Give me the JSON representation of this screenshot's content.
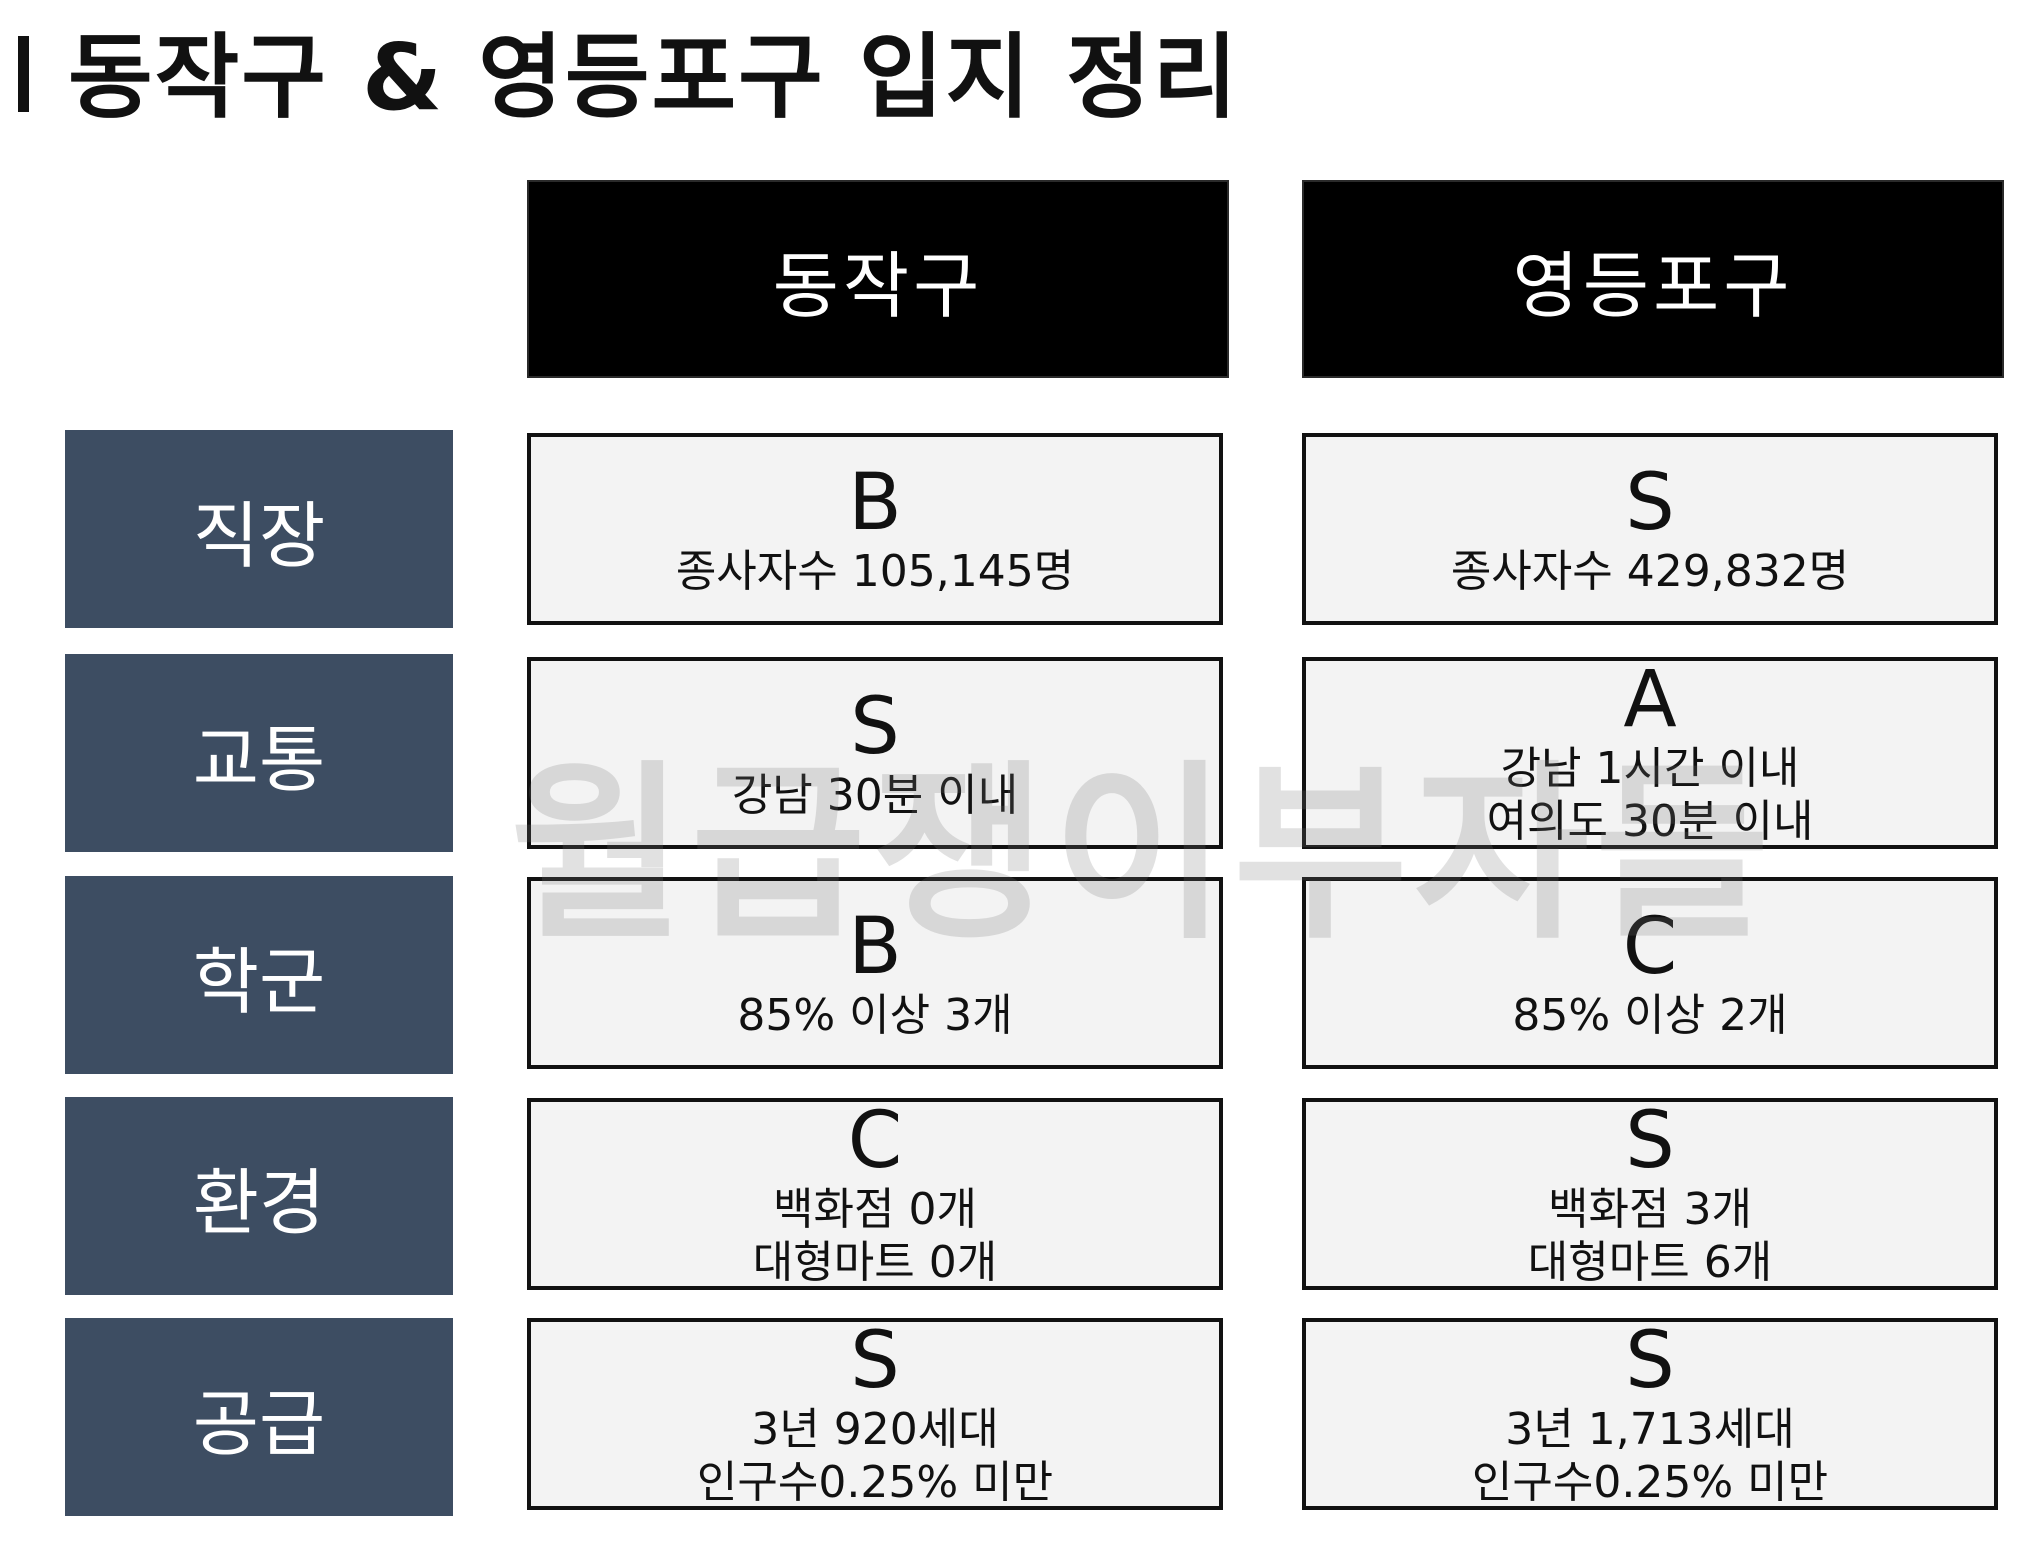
{
  "title": "동작구 & 영등포구 입지 정리",
  "columns": [
    "동작구",
    "영등포구"
  ],
  "rows": [
    {
      "label": "직장",
      "a": {
        "grade": "B",
        "line1": "종사자수 105,145명",
        "line2": ""
      },
      "b": {
        "grade": "S",
        "line1": "종사자수 429,832명",
        "line2": ""
      }
    },
    {
      "label": "교통",
      "a": {
        "grade": "S",
        "line1": "강남 30분 이내",
        "line2": ""
      },
      "b": {
        "grade": "A",
        "line1": "강남 1시간 이내",
        "line2": "여의도 30분 이내"
      }
    },
    {
      "label": "학군",
      "a": {
        "grade": "B",
        "line1": "85% 이상 3개",
        "line2": ""
      },
      "b": {
        "grade": "C",
        "line1": "85% 이상 2개",
        "line2": ""
      }
    },
    {
      "label": "환경",
      "a": {
        "grade": "C",
        "line1": "백화점 0개",
        "line2": "대형마트 0개"
      },
      "b": {
        "grade": "S",
        "line1": "백화점 3개",
        "line2": "대형마트 6개"
      }
    },
    {
      "label": "공급",
      "a": {
        "grade": "S",
        "line1": "3년 920세대",
        "line2": "인구수0.25% 미만"
      },
      "b": {
        "grade": "S",
        "line1": "3년 1,713세대",
        "line2": "인구수0.25% 미만"
      }
    }
  ],
  "watermark": "월급쟁이부자들",
  "colors": {
    "row_label_bg": "#3d4d62",
    "header_bg": "#000000",
    "cell_bg": "#f3f3f3"
  }
}
